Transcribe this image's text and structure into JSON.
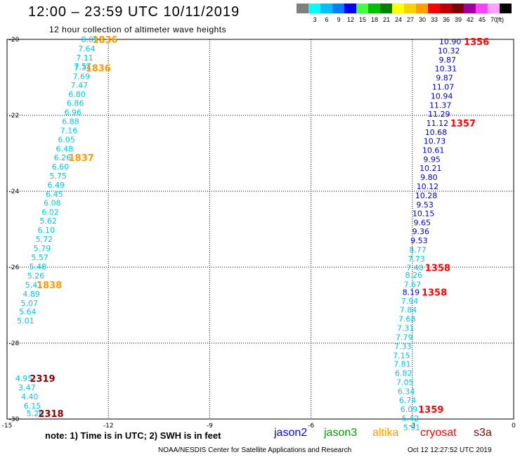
{
  "title": "12:00 – 23:59 UTC 10/11/2019",
  "subtitle": "12 hour collection of altimeter wave heights",
  "legend": {
    "unit": "(ft)",
    "swatches": [
      {
        "color": "#7f7f7f",
        "label": ""
      },
      {
        "color": "#00ffff",
        "label": "3"
      },
      {
        "color": "#00bfff",
        "label": "6"
      },
      {
        "color": "#0080ff",
        "label": "9"
      },
      {
        "color": "#0000ff",
        "label": "12"
      },
      {
        "color": "#40ff40",
        "label": "15"
      },
      {
        "color": "#00c000",
        "label": "18"
      },
      {
        "color": "#008000",
        "label": "21"
      },
      {
        "color": "#ffff00",
        "label": "24"
      },
      {
        "color": "#ffd000",
        "label": "27"
      },
      {
        "color": "#ffa000",
        "label": "30"
      },
      {
        "color": "#ff0000",
        "label": "33"
      },
      {
        "color": "#c00000",
        "label": "36"
      },
      {
        "color": "#800000",
        "label": "39"
      },
      {
        "color": "#a000a0",
        "label": "42"
      },
      {
        "color": "#ff40ff",
        "label": "45"
      },
      {
        "color": "#ffa0ff",
        "label": "70"
      },
      {
        "color": "#000000",
        "label": ""
      }
    ]
  },
  "note": "note: 1) Time is in UTC; 2) SWH is in feet",
  "satellites": [
    {
      "name": "jason2",
      "color": "#0000ff"
    },
    {
      "name": "jason3",
      "color": "#00a000"
    },
    {
      "name": "altika",
      "color": "#ff9900"
    },
    {
      "name": "cryosat",
      "color": "#ff0000"
    },
    {
      "name": "s3a",
      "color": "#8b0000"
    }
  ],
  "footer": {
    "credit": "NOAA/NESDIS Center for Satellite Applications and Research",
    "timestamp": "Oct 12 12:27:52 UTC 2019"
  },
  "chart_data": {
    "type": "scatter",
    "xlim": [
      -15,
      0
    ],
    "ylim": [
      -30,
      -20
    ],
    "x_ticks": [
      "-15",
      "-12",
      "-9",
      "-6",
      "-3",
      "0"
    ],
    "y_ticks": [
      "-20",
      "-22",
      "-24",
      "-26",
      "-28",
      "-30"
    ],
    "grid": true,
    "value_colors": {
      "cyan": "#00c8e6",
      "blue": "#0000d0"
    },
    "pass_colors": {
      "altika": "#ff9900",
      "cryosat": "#ff0000",
      "s3a": "#8b0000"
    },
    "points": [
      {
        "x": -12.55,
        "y": -20.0,
        "v": "8.09",
        "c": "cyan"
      },
      {
        "x": -12.64,
        "y": -20.24,
        "v": "7.64",
        "c": "cyan"
      },
      {
        "x": -12.7,
        "y": -20.48,
        "v": "7.11",
        "c": "cyan"
      },
      {
        "x": -12.76,
        "y": -20.7,
        "v": "7.57",
        "c": "cyan"
      },
      {
        "x": -12.76,
        "y": -20.74,
        "v": "7.34",
        "c": "cyan"
      },
      {
        "x": -12.8,
        "y": -20.97,
        "v": "7.69",
        "c": "cyan"
      },
      {
        "x": -12.86,
        "y": -21.2,
        "v": "7.47",
        "c": "cyan"
      },
      {
        "x": -12.93,
        "y": -21.44,
        "v": "6.80",
        "c": "cyan"
      },
      {
        "x": -12.98,
        "y": -21.68,
        "v": "6.86",
        "c": "cyan"
      },
      {
        "x": -13.05,
        "y": -21.92,
        "v": "6.96",
        "c": "cyan"
      },
      {
        "x": -13.12,
        "y": -22.16,
        "v": "6.88",
        "c": "cyan"
      },
      {
        "x": -13.17,
        "y": -22.4,
        "v": "7.16",
        "c": "cyan"
      },
      {
        "x": -13.24,
        "y": -22.64,
        "v": "6.05",
        "c": "cyan"
      },
      {
        "x": -13.3,
        "y": -22.88,
        "v": "6.48",
        "c": "cyan"
      },
      {
        "x": -13.36,
        "y": -23.11,
        "v": "6.26",
        "c": "cyan"
      },
      {
        "x": -13.42,
        "y": -23.35,
        "v": "6.60",
        "c": "cyan"
      },
      {
        "x": -13.49,
        "y": -23.59,
        "v": "5.75",
        "c": "cyan"
      },
      {
        "x": -13.55,
        "y": -23.83,
        "v": "6.49",
        "c": "cyan"
      },
      {
        "x": -13.6,
        "y": -24.07,
        "v": "6.45",
        "c": "cyan"
      },
      {
        "x": -13.66,
        "y": -24.31,
        "v": "6.08",
        "c": "cyan"
      },
      {
        "x": -13.72,
        "y": -24.55,
        "v": "6.02",
        "c": "cyan"
      },
      {
        "x": -13.78,
        "y": -24.78,
        "v": "5.62",
        "c": "cyan"
      },
      {
        "x": -13.84,
        "y": -25.02,
        "v": "6.10",
        "c": "cyan"
      },
      {
        "x": -13.9,
        "y": -25.26,
        "v": "5.72",
        "c": "cyan"
      },
      {
        "x": -13.96,
        "y": -25.5,
        "v": "5.79",
        "c": "cyan"
      },
      {
        "x": -14.03,
        "y": -25.74,
        "v": "5.57",
        "c": "cyan"
      },
      {
        "x": -14.09,
        "y": -25.98,
        "v": "5.48",
        "c": "cyan"
      },
      {
        "x": -14.15,
        "y": -26.22,
        "v": "5.26",
        "c": "cyan"
      },
      {
        "x": -14.21,
        "y": -26.46,
        "v": "5.41",
        "c": "cyan"
      },
      {
        "x": -14.28,
        "y": -26.7,
        "v": "4.89",
        "c": "cyan"
      },
      {
        "x": -14.34,
        "y": -26.94,
        "v": "5.07",
        "c": "cyan"
      },
      {
        "x": -14.39,
        "y": -27.17,
        "v": "5.64",
        "c": "cyan"
      },
      {
        "x": -14.45,
        "y": -27.41,
        "v": "5.01",
        "c": "cyan"
      },
      {
        "x": -14.5,
        "y": -28.93,
        "v": "4.95",
        "c": "cyan"
      },
      {
        "x": -14.41,
        "y": -29.17,
        "v": "3.47",
        "c": "cyan"
      },
      {
        "x": -14.33,
        "y": -29.41,
        "v": "4.40",
        "c": "cyan"
      },
      {
        "x": -14.25,
        "y": -29.65,
        "v": "6.15",
        "c": "cyan"
      },
      {
        "x": -14.17,
        "y": -29.85,
        "v": "5.26",
        "c": "cyan"
      },
      {
        "x": -1.88,
        "y": -20.06,
        "v": "10.90",
        "c": "blue"
      },
      {
        "x": -1.92,
        "y": -20.3,
        "v": "10.32",
        "c": "blue"
      },
      {
        "x": -1.96,
        "y": -20.54,
        "v": "9.87",
        "c": "blue"
      },
      {
        "x": -2.01,
        "y": -20.77,
        "v": "10.31",
        "c": "blue"
      },
      {
        "x": -2.05,
        "y": -21.01,
        "v": "9.87",
        "c": "blue"
      },
      {
        "x": -2.09,
        "y": -21.25,
        "v": "11.07",
        "c": "blue"
      },
      {
        "x": -2.13,
        "y": -21.49,
        "v": "10.94",
        "c": "blue"
      },
      {
        "x": -2.17,
        "y": -21.73,
        "v": "11.37",
        "c": "blue"
      },
      {
        "x": -2.21,
        "y": -21.96,
        "v": "11.29",
        "c": "blue"
      },
      {
        "x": -2.26,
        "y": -22.2,
        "v": "11.12",
        "c": "blue"
      },
      {
        "x": -2.3,
        "y": -22.44,
        "v": "10.68",
        "c": "blue"
      },
      {
        "x": -2.34,
        "y": -22.68,
        "v": "10.73",
        "c": "blue"
      },
      {
        "x": -2.38,
        "y": -22.92,
        "v": "10.61",
        "c": "blue"
      },
      {
        "x": -2.42,
        "y": -23.16,
        "v": "9.95",
        "c": "blue"
      },
      {
        "x": -2.46,
        "y": -23.39,
        "v": "10.21",
        "c": "blue"
      },
      {
        "x": -2.51,
        "y": -23.63,
        "v": "9.80",
        "c": "blue"
      },
      {
        "x": -2.55,
        "y": -23.87,
        "v": "10.12",
        "c": "blue"
      },
      {
        "x": -2.59,
        "y": -24.11,
        "v": "10.28",
        "c": "blue"
      },
      {
        "x": -2.63,
        "y": -24.35,
        "v": "9.53",
        "c": "blue"
      },
      {
        "x": -2.67,
        "y": -24.58,
        "v": "10.15",
        "c": "blue"
      },
      {
        "x": -2.71,
        "y": -24.82,
        "v": "9.65",
        "c": "blue"
      },
      {
        "x": -2.75,
        "y": -25.06,
        "v": "9.36",
        "c": "blue"
      },
      {
        "x": -2.8,
        "y": -25.3,
        "v": "9.53",
        "c": "blue"
      },
      {
        "x": -2.84,
        "y": -25.54,
        "v": "8.77",
        "c": "cyan"
      },
      {
        "x": -2.88,
        "y": -25.78,
        "v": "7.73",
        "c": "cyan"
      },
      {
        "x": -2.92,
        "y": -26.01,
        "v": "7.48",
        "c": "cyan"
      },
      {
        "x": -2.96,
        "y": -26.2,
        "v": "8.26",
        "c": "cyan"
      },
      {
        "x": -3.0,
        "y": -26.45,
        "v": "7.67",
        "c": "cyan"
      },
      {
        "x": -3.04,
        "y": -26.66,
        "v": "8.19",
        "c": "blue"
      },
      {
        "x": -3.08,
        "y": -26.89,
        "v": "7.94",
        "c": "cyan"
      },
      {
        "x": -3.12,
        "y": -27.12,
        "v": "7.84",
        "c": "cyan"
      },
      {
        "x": -3.16,
        "y": -27.36,
        "v": "7.68",
        "c": "cyan"
      },
      {
        "x": -3.2,
        "y": -27.6,
        "v": "7.31",
        "c": "cyan"
      },
      {
        "x": -3.24,
        "y": -27.84,
        "v": "7.79",
        "c": "cyan"
      },
      {
        "x": -3.28,
        "y": -28.08,
        "v": "7.33",
        "c": "cyan"
      },
      {
        "x": -3.32,
        "y": -28.32,
        "v": "7.15",
        "c": "cyan"
      },
      {
        "x": -3.3,
        "y": -28.55,
        "v": "7.81",
        "c": "cyan"
      },
      {
        "x": -3.26,
        "y": -28.79,
        "v": "6.82",
        "c": "cyan"
      },
      {
        "x": -3.22,
        "y": -29.03,
        "v": "7.05",
        "c": "cyan"
      },
      {
        "x": -3.18,
        "y": -29.27,
        "v": "6.34",
        "c": "cyan"
      },
      {
        "x": -3.14,
        "y": -29.5,
        "v": "6.74",
        "c": "cyan"
      },
      {
        "x": -3.1,
        "y": -29.74,
        "v": "6.09",
        "c": "cyan"
      },
      {
        "x": -3.06,
        "y": -29.98,
        "v": "5.42",
        "c": "cyan"
      },
      {
        "x": -3.02,
        "y": -30.22,
        "v": "5.91",
        "c": "cyan"
      }
    ],
    "passes": [
      {
        "x": -12.1,
        "y": -20.0,
        "label": "1836",
        "sat": "altika"
      },
      {
        "x": -12.3,
        "y": -20.75,
        "label": "1836",
        "sat": "altika"
      },
      {
        "x": -12.8,
        "y": -23.11,
        "label": "1837",
        "sat": "altika"
      },
      {
        "x": -13.75,
        "y": -26.46,
        "label": "1838",
        "sat": "altika"
      },
      {
        "x": -13.95,
        "y": -28.93,
        "label": "2319",
        "sat": "s3a"
      },
      {
        "x": -13.7,
        "y": -29.85,
        "label": "2318",
        "sat": "s3a"
      },
      {
        "x": -1.1,
        "y": -20.06,
        "label": "1356",
        "sat": "cryosat"
      },
      {
        "x": -1.5,
        "y": -22.2,
        "label": "1357",
        "sat": "cryosat"
      },
      {
        "x": -2.25,
        "y": -26.01,
        "label": "1358",
        "sat": "cryosat"
      },
      {
        "x": -2.35,
        "y": -26.66,
        "label": "1358",
        "sat": "cryosat"
      },
      {
        "x": -2.45,
        "y": -29.74,
        "label": "1359",
        "sat": "cryosat"
      }
    ]
  }
}
